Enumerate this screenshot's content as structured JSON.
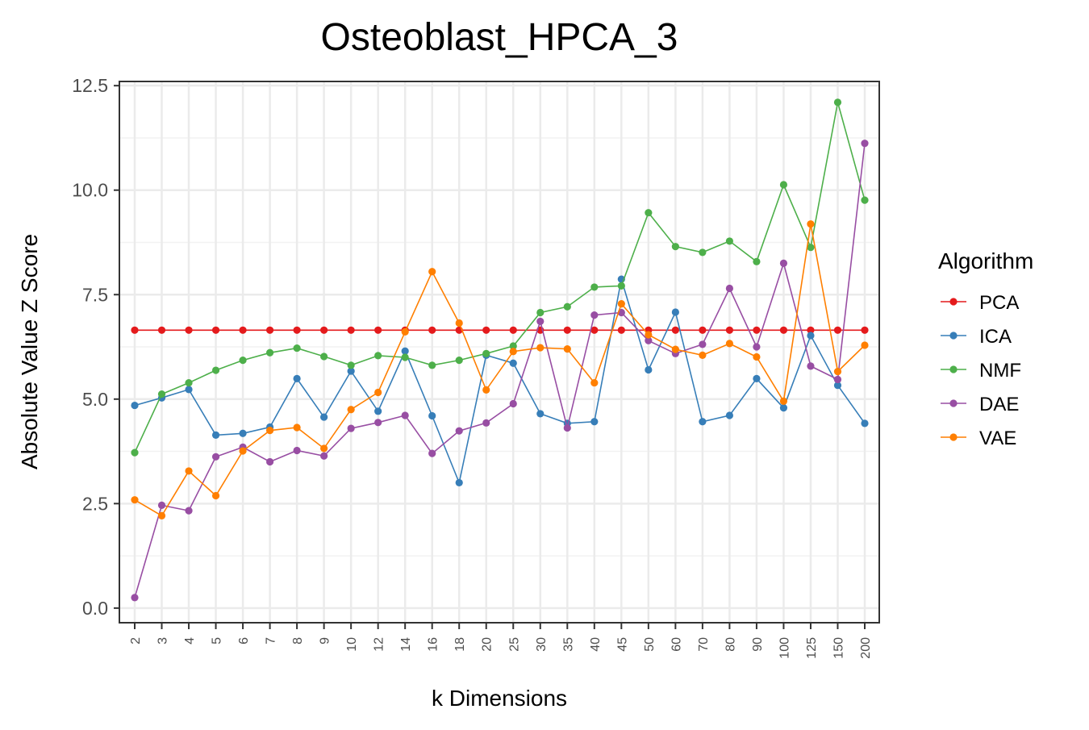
{
  "chart_data": {
    "type": "line",
    "title": "Osteoblast_HPCA_3",
    "xlabel": "k Dimensions",
    "ylabel": "Absolute Value Z Score",
    "ylim": [
      -0.35,
      12.6
    ],
    "yticks": [
      "0.0",
      "2.5",
      "5.0",
      "7.5",
      "10.0",
      "12.5"
    ],
    "ytick_values": [
      0,
      2.5,
      5,
      7.5,
      10,
      12.5
    ],
    "grid": true,
    "legend_title": "Algorithm",
    "legend_position": "right",
    "categories": [
      "2",
      "3",
      "4",
      "5",
      "6",
      "7",
      "8",
      "9",
      "10",
      "12",
      "14",
      "16",
      "18",
      "20",
      "25",
      "30",
      "35",
      "40",
      "45",
      "50",
      "60",
      "70",
      "80",
      "90",
      "100",
      "125",
      "150",
      "200"
    ],
    "series": [
      {
        "name": "PCA",
        "color": "#e41a1c",
        "values": [
          6.65,
          6.65,
          6.65,
          6.65,
          6.65,
          6.65,
          6.65,
          6.65,
          6.65,
          6.65,
          6.65,
          6.65,
          6.65,
          6.65,
          6.65,
          6.65,
          6.65,
          6.65,
          6.65,
          6.65,
          6.65,
          6.65,
          6.65,
          6.65,
          6.65,
          6.65,
          6.65,
          6.65
        ]
      },
      {
        "name": "ICA",
        "color": "#377eb8",
        "values": [
          4.85,
          5.03,
          5.23,
          4.14,
          4.18,
          4.33,
          5.49,
          4.57,
          5.67,
          4.71,
          6.15,
          4.6,
          3.0,
          6.05,
          5.86,
          4.65,
          4.42,
          4.46,
          7.87,
          5.7,
          7.08,
          4.46,
          4.61,
          5.49,
          4.79,
          6.52,
          5.33,
          4.42
        ]
      },
      {
        "name": "NMF",
        "color": "#4daf4a",
        "values": [
          3.72,
          5.12,
          5.39,
          5.69,
          5.93,
          6.11,
          6.22,
          6.02,
          5.81,
          6.04,
          6.0,
          5.81,
          5.93,
          6.09,
          6.27,
          7.07,
          7.21,
          7.68,
          7.71,
          9.46,
          8.65,
          8.51,
          8.78,
          8.29,
          10.13,
          8.63,
          12.1,
          9.76
        ]
      },
      {
        "name": "DAE",
        "color": "#984ea3",
        "values": [
          0.25,
          2.46,
          2.33,
          3.62,
          3.85,
          3.5,
          3.77,
          3.64,
          4.3,
          4.44,
          4.61,
          3.7,
          4.24,
          4.43,
          4.89,
          6.86,
          4.31,
          7.01,
          7.07,
          6.4,
          6.09,
          6.31,
          7.65,
          6.25,
          8.25,
          5.79,
          5.47,
          11.12
        ]
      },
      {
        "name": "VAE",
        "color": "#ff7f00",
        "values": [
          2.59,
          2.21,
          3.28,
          2.69,
          3.76,
          4.25,
          4.32,
          3.82,
          4.75,
          5.16,
          6.61,
          8.05,
          6.82,
          5.22,
          6.14,
          6.23,
          6.2,
          5.39,
          7.28,
          6.54,
          6.19,
          6.05,
          6.33,
          6.01,
          4.95,
          9.19,
          5.66,
          6.29
        ]
      }
    ]
  }
}
